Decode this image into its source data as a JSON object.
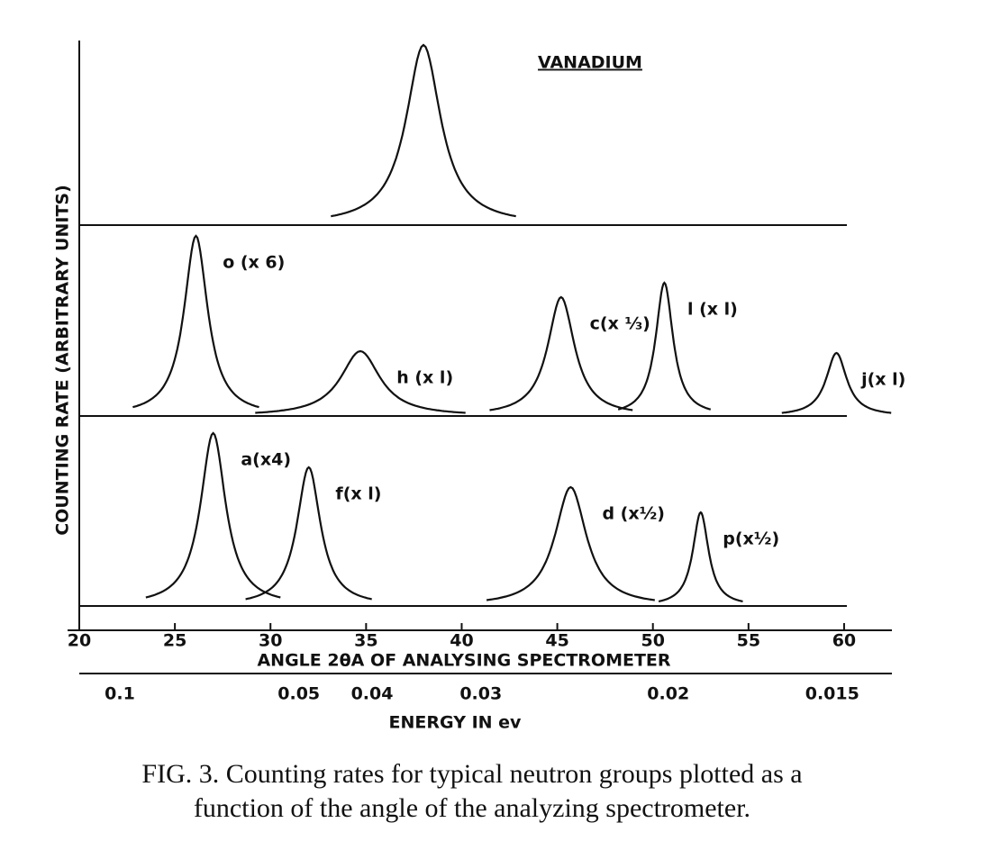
{
  "chart_data": {
    "type": "peaks",
    "ylabel": "COUNTING RATE (ARBITRARY UNITS)",
    "xlabel": "ANGLE 2θA OF ANALYSING SPECTROMETER",
    "xlim": [
      20,
      62.5
    ],
    "xticks": [
      20,
      25,
      30,
      35,
      40,
      45,
      50,
      55,
      60
    ],
    "x2label": "ENERGY IN ev",
    "x2ticks": [
      0.1,
      0.05,
      0.04,
      0.03,
      0.02,
      0.015
    ],
    "panels": [
      {
        "title": "VANADIUM",
        "peaks": [
          {
            "center": 38.0,
            "height": 1.0,
            "width": 2.2
          }
        ]
      },
      {
        "peaks": [
          {
            "label": "o (x 6)",
            "center": 26.1,
            "height": 1.0,
            "width": 1.5
          },
          {
            "label": "h (x l)",
            "center": 34.7,
            "height": 0.36,
            "width": 2.5
          },
          {
            "label": "c(x ⅓)",
            "center": 45.2,
            "height": 0.66,
            "width": 1.7
          },
          {
            "label": "l (x l)",
            "center": 50.6,
            "height": 0.74,
            "width": 1.1
          },
          {
            "label": "j(x l)",
            "center": 59.6,
            "height": 0.35,
            "width": 1.3
          }
        ]
      },
      {
        "peaks": [
          {
            "label": "a(x4)",
            "center": 27.0,
            "height": 0.96,
            "width": 1.6
          },
          {
            "label": "f(x l)",
            "center": 32.0,
            "height": 0.77,
            "width": 1.5
          },
          {
            "label": "d (x½)",
            "center": 45.7,
            "height": 0.66,
            "width": 2.0
          },
          {
            "label": "p(x½)",
            "center": 52.5,
            "height": 0.52,
            "width": 1.0
          }
        ]
      }
    ]
  },
  "caption": {
    "label": "FIG. 3.",
    "lines": [
      "Counting rates for typical neutron groups plotted as a",
      "function of the angle of the analyzing spectrometer."
    ]
  }
}
